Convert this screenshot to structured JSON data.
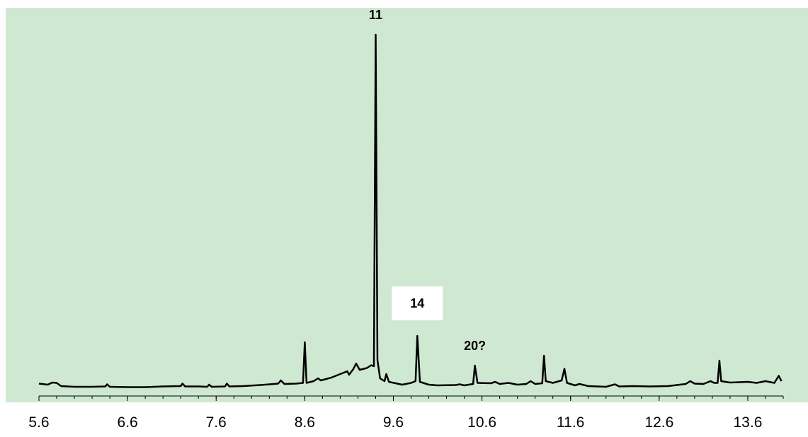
{
  "chart_data": {
    "type": "line",
    "title": "",
    "xlabel": "",
    "ylabel": "",
    "xlim": [
      5.6,
      14.0
    ],
    "ylim": [
      0,
      1.0
    ],
    "x_ticks": [
      "5.6",
      "6.6",
      "7.6",
      "8.6",
      "9.6",
      "10.6",
      "11.6",
      "12.6",
      "13.6"
    ],
    "grid": false,
    "colors": {
      "plot_background": "#cfe8d2",
      "line": "#000000",
      "label_box": "#ffffff"
    },
    "series": [
      {
        "points": [
          [
            5.6,
            0.013
          ],
          [
            5.7,
            0.01
          ],
          [
            5.75,
            0.016
          ],
          [
            5.8,
            0.015
          ],
          [
            5.85,
            0.006
          ],
          [
            6.0,
            0.004
          ],
          [
            6.2,
            0.004
          ],
          [
            6.35,
            0.005
          ],
          [
            6.37,
            0.011
          ],
          [
            6.4,
            0.004
          ],
          [
            6.6,
            0.003
          ],
          [
            6.8,
            0.003
          ],
          [
            7.0,
            0.005
          ],
          [
            7.2,
            0.006
          ],
          [
            7.22,
            0.013
          ],
          [
            7.25,
            0.005
          ],
          [
            7.4,
            0.005
          ],
          [
            7.5,
            0.004
          ],
          [
            7.52,
            0.01
          ],
          [
            7.55,
            0.004
          ],
          [
            7.7,
            0.005
          ],
          [
            7.72,
            0.013
          ],
          [
            7.75,
            0.005
          ],
          [
            7.9,
            0.006
          ],
          [
            8.1,
            0.009
          ],
          [
            8.3,
            0.013
          ],
          [
            8.33,
            0.022
          ],
          [
            8.37,
            0.012
          ],
          [
            8.5,
            0.013
          ],
          [
            8.58,
            0.015
          ],
          [
            8.6,
            0.13
          ],
          [
            8.62,
            0.015
          ],
          [
            8.7,
            0.02
          ],
          [
            8.75,
            0.028
          ],
          [
            8.78,
            0.022
          ],
          [
            8.9,
            0.03
          ],
          [
            9.0,
            0.04
          ],
          [
            9.08,
            0.048
          ],
          [
            9.1,
            0.038
          ],
          [
            9.15,
            0.055
          ],
          [
            9.18,
            0.07
          ],
          [
            9.22,
            0.052
          ],
          [
            9.3,
            0.057
          ],
          [
            9.35,
            0.065
          ],
          [
            9.38,
            0.062
          ],
          [
            9.4,
            1.0
          ],
          [
            9.42,
            0.08
          ],
          [
            9.45,
            0.028
          ],
          [
            9.5,
            0.02
          ],
          [
            9.52,
            0.04
          ],
          [
            9.55,
            0.018
          ],
          [
            9.7,
            0.01
          ],
          [
            9.8,
            0.015
          ],
          [
            9.85,
            0.02
          ],
          [
            9.87,
            0.148
          ],
          [
            9.9,
            0.018
          ],
          [
            10.0,
            0.01
          ],
          [
            10.1,
            0.008
          ],
          [
            10.3,
            0.009
          ],
          [
            10.35,
            0.011
          ],
          [
            10.4,
            0.008
          ],
          [
            10.5,
            0.012
          ],
          [
            10.52,
            0.064
          ],
          [
            10.55,
            0.015
          ],
          [
            10.7,
            0.014
          ],
          [
            10.75,
            0.018
          ],
          [
            10.8,
            0.012
          ],
          [
            10.9,
            0.015
          ],
          [
            11.0,
            0.01
          ],
          [
            11.1,
            0.012
          ],
          [
            11.15,
            0.02
          ],
          [
            11.2,
            0.012
          ],
          [
            11.28,
            0.014
          ],
          [
            11.3,
            0.092
          ],
          [
            11.32,
            0.02
          ],
          [
            11.4,
            0.015
          ],
          [
            11.5,
            0.022
          ],
          [
            11.53,
            0.055
          ],
          [
            11.56,
            0.015
          ],
          [
            11.65,
            0.008
          ],
          [
            11.7,
            0.012
          ],
          [
            11.8,
            0.006
          ],
          [
            12.0,
            0.004
          ],
          [
            12.1,
            0.011
          ],
          [
            12.15,
            0.005
          ],
          [
            12.3,
            0.006
          ],
          [
            12.5,
            0.005
          ],
          [
            12.7,
            0.006
          ],
          [
            12.9,
            0.012
          ],
          [
            12.95,
            0.02
          ],
          [
            13.0,
            0.013
          ],
          [
            13.1,
            0.012
          ],
          [
            13.18,
            0.02
          ],
          [
            13.22,
            0.015
          ],
          [
            13.26,
            0.015
          ],
          [
            13.28,
            0.078
          ],
          [
            13.3,
            0.02
          ],
          [
            13.4,
            0.016
          ],
          [
            13.6,
            0.018
          ],
          [
            13.7,
            0.015
          ],
          [
            13.8,
            0.02
          ],
          [
            13.9,
            0.015
          ],
          [
            13.95,
            0.035
          ],
          [
            13.98,
            0.02
          ]
        ]
      }
    ],
    "annotations": [
      {
        "text": "11",
        "x": 9.4,
        "y": 1.0,
        "boxed": false
      },
      {
        "text": "14",
        "x": 9.87,
        "y": 0.148,
        "boxed": true
      },
      {
        "text": "20?",
        "x": 10.52,
        "y": 0.064,
        "boxed": false
      }
    ]
  }
}
